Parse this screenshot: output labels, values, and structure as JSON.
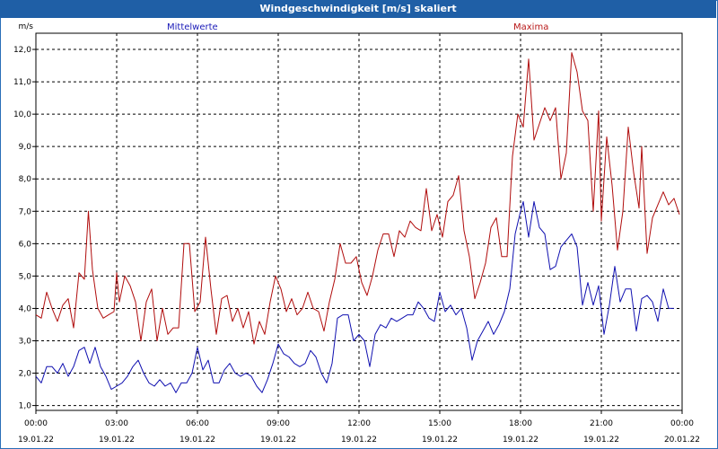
{
  "window": {
    "title": "Windgeschwindigkeit [m/s] skaliert"
  },
  "colors": {
    "series0": "#1010b0",
    "series1": "#b00c0c",
    "grid": "#000000"
  },
  "chart_data": {
    "type": "line",
    "title": "Windgeschwindigkeit [m/s] skaliert",
    "ylabel": "m/s",
    "ylim": [
      1.0,
      12.0
    ],
    "xlim": [
      0,
      24
    ],
    "grid": true,
    "y_ticks": [
      "1,0",
      "2,0",
      "3,0",
      "4,0",
      "5,0",
      "6,0",
      "7,0",
      "8,0",
      "9,0",
      "10,0",
      "11,0",
      "12,0"
    ],
    "x_ticks": [
      {
        "time": "00:00",
        "date": "19.01.22"
      },
      {
        "time": "03:00",
        "date": "19.01.22"
      },
      {
        "time": "06:00",
        "date": "19.01.22"
      },
      {
        "time": "09:00",
        "date": "19.01.22"
      },
      {
        "time": "12:00",
        "date": "19.01.22"
      },
      {
        "time": "15:00",
        "date": "19.01.22"
      },
      {
        "time": "18:00",
        "date": "19.01.22"
      },
      {
        "time": "21:00",
        "date": "19.01.22"
      },
      {
        "time": "00:00",
        "date": "20.01.22"
      }
    ],
    "series": [
      {
        "name": "Mittelwerte",
        "points": [
          [
            0.0,
            1.9
          ],
          [
            0.2,
            1.7
          ],
          [
            0.4,
            2.2
          ],
          [
            0.6,
            2.2
          ],
          [
            0.8,
            2.0
          ],
          [
            1.0,
            2.3
          ],
          [
            1.2,
            1.9
          ],
          [
            1.4,
            2.2
          ],
          [
            1.6,
            2.7
          ],
          [
            1.8,
            2.8
          ],
          [
            2.0,
            2.3
          ],
          [
            2.2,
            2.8
          ],
          [
            2.4,
            2.2
          ],
          [
            2.6,
            1.9
          ],
          [
            2.8,
            1.5
          ],
          [
            3.0,
            1.6
          ],
          [
            3.2,
            1.7
          ],
          [
            3.4,
            1.9
          ],
          [
            3.6,
            2.2
          ],
          [
            3.8,
            2.4
          ],
          [
            4.0,
            2.0
          ],
          [
            4.2,
            1.7
          ],
          [
            4.4,
            1.6
          ],
          [
            4.6,
            1.8
          ],
          [
            4.8,
            1.6
          ],
          [
            5.0,
            1.7
          ],
          [
            5.2,
            1.4
          ],
          [
            5.4,
            1.7
          ],
          [
            5.6,
            1.7
          ],
          [
            5.8,
            2.0
          ],
          [
            6.0,
            2.8
          ],
          [
            6.2,
            2.1
          ],
          [
            6.4,
            2.4
          ],
          [
            6.6,
            1.7
          ],
          [
            6.8,
            1.7
          ],
          [
            7.0,
            2.1
          ],
          [
            7.2,
            2.3
          ],
          [
            7.4,
            2.0
          ],
          [
            7.6,
            1.9
          ],
          [
            7.8,
            2.0
          ],
          [
            8.0,
            1.9
          ],
          [
            8.2,
            1.6
          ],
          [
            8.4,
            1.4
          ],
          [
            8.6,
            1.8
          ],
          [
            8.8,
            2.3
          ],
          [
            9.0,
            2.9
          ],
          [
            9.2,
            2.6
          ],
          [
            9.4,
            2.5
          ],
          [
            9.6,
            2.3
          ],
          [
            9.8,
            2.2
          ],
          [
            10.0,
            2.3
          ],
          [
            10.2,
            2.7
          ],
          [
            10.4,
            2.5
          ],
          [
            10.6,
            2.0
          ],
          [
            10.8,
            1.7
          ],
          [
            11.0,
            2.3
          ],
          [
            11.2,
            3.7
          ],
          [
            11.4,
            3.8
          ],
          [
            11.6,
            3.8
          ],
          [
            11.8,
            3.0
          ],
          [
            12.0,
            3.2
          ],
          [
            12.2,
            3.0
          ],
          [
            12.4,
            2.2
          ],
          [
            12.6,
            3.2
          ],
          [
            12.8,
            3.5
          ],
          [
            13.0,
            3.4
          ],
          [
            13.2,
            3.7
          ],
          [
            13.4,
            3.6
          ],
          [
            13.6,
            3.7
          ],
          [
            13.8,
            3.8
          ],
          [
            14.0,
            3.8
          ],
          [
            14.2,
            4.2
          ],
          [
            14.4,
            4.0
          ],
          [
            14.6,
            3.7
          ],
          [
            14.8,
            3.6
          ],
          [
            15.0,
            4.5
          ],
          [
            15.2,
            3.9
          ],
          [
            15.4,
            4.1
          ],
          [
            15.6,
            3.8
          ],
          [
            15.8,
            4.0
          ],
          [
            16.0,
            3.4
          ],
          [
            16.2,
            2.4
          ],
          [
            16.4,
            3.0
          ],
          [
            16.6,
            3.3
          ],
          [
            16.8,
            3.6
          ],
          [
            17.0,
            3.2
          ],
          [
            17.2,
            3.5
          ],
          [
            17.4,
            3.9
          ],
          [
            17.6,
            4.6
          ],
          [
            17.8,
            6.3
          ],
          [
            18.0,
            7.0
          ],
          [
            18.1,
            7.3
          ],
          [
            18.3,
            6.2
          ],
          [
            18.5,
            7.3
          ],
          [
            18.7,
            6.5
          ],
          [
            18.9,
            6.3
          ],
          [
            19.1,
            5.2
          ],
          [
            19.3,
            5.3
          ],
          [
            19.5,
            5.9
          ],
          [
            19.7,
            6.1
          ],
          [
            19.9,
            6.3
          ],
          [
            20.1,
            5.9
          ],
          [
            20.3,
            4.1
          ],
          [
            20.5,
            4.8
          ],
          [
            20.7,
            4.1
          ],
          [
            20.9,
            4.7
          ],
          [
            21.1,
            3.2
          ],
          [
            21.3,
            4.1
          ],
          [
            21.5,
            5.3
          ],
          [
            21.7,
            4.2
          ],
          [
            21.9,
            4.6
          ],
          [
            22.1,
            4.6
          ],
          [
            22.3,
            3.3
          ],
          [
            22.5,
            4.3
          ],
          [
            22.7,
            4.4
          ],
          [
            22.9,
            4.2
          ],
          [
            23.1,
            3.6
          ],
          [
            23.3,
            4.6
          ],
          [
            23.5,
            4.0
          ],
          [
            23.7,
            4.0
          ]
        ]
      },
      {
        "name": "Maxima",
        "points": [
          [
            0.0,
            3.8
          ],
          [
            0.2,
            3.7
          ],
          [
            0.4,
            4.5
          ],
          [
            0.6,
            4.0
          ],
          [
            0.8,
            3.6
          ],
          [
            1.0,
            4.1
          ],
          [
            1.2,
            4.3
          ],
          [
            1.4,
            3.4
          ],
          [
            1.6,
            5.1
          ],
          [
            1.8,
            4.9
          ],
          [
            1.95,
            7.0
          ],
          [
            2.1,
            5.2
          ],
          [
            2.3,
            4.0
          ],
          [
            2.5,
            3.7
          ],
          [
            2.7,
            3.8
          ],
          [
            2.9,
            3.9
          ],
          [
            3.0,
            5.1
          ],
          [
            3.1,
            4.2
          ],
          [
            3.3,
            5.0
          ],
          [
            3.5,
            4.7
          ],
          [
            3.7,
            4.2
          ],
          [
            3.9,
            3.0
          ],
          [
            4.1,
            4.2
          ],
          [
            4.3,
            4.6
          ],
          [
            4.5,
            3.0
          ],
          [
            4.7,
            4.0
          ],
          [
            4.9,
            3.2
          ],
          [
            5.1,
            3.4
          ],
          [
            5.3,
            3.4
          ],
          [
            5.5,
            6.0
          ],
          [
            5.7,
            6.0
          ],
          [
            5.9,
            3.9
          ],
          [
            6.1,
            4.2
          ],
          [
            6.3,
            6.2
          ],
          [
            6.5,
            4.6
          ],
          [
            6.7,
            3.2
          ],
          [
            6.9,
            4.3
          ],
          [
            7.1,
            4.4
          ],
          [
            7.3,
            3.6
          ],
          [
            7.5,
            4.0
          ],
          [
            7.7,
            3.4
          ],
          [
            7.9,
            3.9
          ],
          [
            8.1,
            2.9
          ],
          [
            8.3,
            3.6
          ],
          [
            8.5,
            3.2
          ],
          [
            8.7,
            4.2
          ],
          [
            8.9,
            5.0
          ],
          [
            9.1,
            4.6
          ],
          [
            9.3,
            3.9
          ],
          [
            9.5,
            4.3
          ],
          [
            9.7,
            3.8
          ],
          [
            9.9,
            4.0
          ],
          [
            10.1,
            4.5
          ],
          [
            10.3,
            4.0
          ],
          [
            10.5,
            3.9
          ],
          [
            10.7,
            3.3
          ],
          [
            10.9,
            4.2
          ],
          [
            11.1,
            4.9
          ],
          [
            11.3,
            6.0
          ],
          [
            11.5,
            5.4
          ],
          [
            11.7,
            5.4
          ],
          [
            11.9,
            5.6
          ],
          [
            12.1,
            4.8
          ],
          [
            12.3,
            4.4
          ],
          [
            12.5,
            5.0
          ],
          [
            12.7,
            5.8
          ],
          [
            12.9,
            6.3
          ],
          [
            13.1,
            6.3
          ],
          [
            13.3,
            5.6
          ],
          [
            13.5,
            6.4
          ],
          [
            13.7,
            6.2
          ],
          [
            13.9,
            6.7
          ],
          [
            14.1,
            6.5
          ],
          [
            14.3,
            6.4
          ],
          [
            14.5,
            7.7
          ],
          [
            14.7,
            6.4
          ],
          [
            14.9,
            6.9
          ],
          [
            15.1,
            6.2
          ],
          [
            15.3,
            7.3
          ],
          [
            15.5,
            7.5
          ],
          [
            15.7,
            8.1
          ],
          [
            15.9,
            6.4
          ],
          [
            16.1,
            5.6
          ],
          [
            16.3,
            4.3
          ],
          [
            16.5,
            4.8
          ],
          [
            16.7,
            5.4
          ],
          [
            16.9,
            6.5
          ],
          [
            17.1,
            6.8
          ],
          [
            17.3,
            5.6
          ],
          [
            17.5,
            5.6
          ],
          [
            17.7,
            8.7
          ],
          [
            17.9,
            10.0
          ],
          [
            18.1,
            9.6
          ],
          [
            18.3,
            11.7
          ],
          [
            18.5,
            9.2
          ],
          [
            18.7,
            9.7
          ],
          [
            18.9,
            10.2
          ],
          [
            19.1,
            9.8
          ],
          [
            19.3,
            10.2
          ],
          [
            19.5,
            8.0
          ],
          [
            19.7,
            8.8
          ],
          [
            19.9,
            11.9
          ],
          [
            20.1,
            11.3
          ],
          [
            20.3,
            10.1
          ],
          [
            20.5,
            9.8
          ],
          [
            20.7,
            7.0
          ],
          [
            20.9,
            10.1
          ],
          [
            21.0,
            6.7
          ],
          [
            21.2,
            9.3
          ],
          [
            21.4,
            7.8
          ],
          [
            21.6,
            5.8
          ],
          [
            21.8,
            7.0
          ],
          [
            22.0,
            9.6
          ],
          [
            22.2,
            8.2
          ],
          [
            22.4,
            7.1
          ],
          [
            22.5,
            9.0
          ],
          [
            22.7,
            5.7
          ],
          [
            22.9,
            6.8
          ],
          [
            23.1,
            7.2
          ],
          [
            23.3,
            7.6
          ],
          [
            23.5,
            7.2
          ],
          [
            23.7,
            7.4
          ],
          [
            23.9,
            6.9
          ]
        ]
      }
    ]
  }
}
